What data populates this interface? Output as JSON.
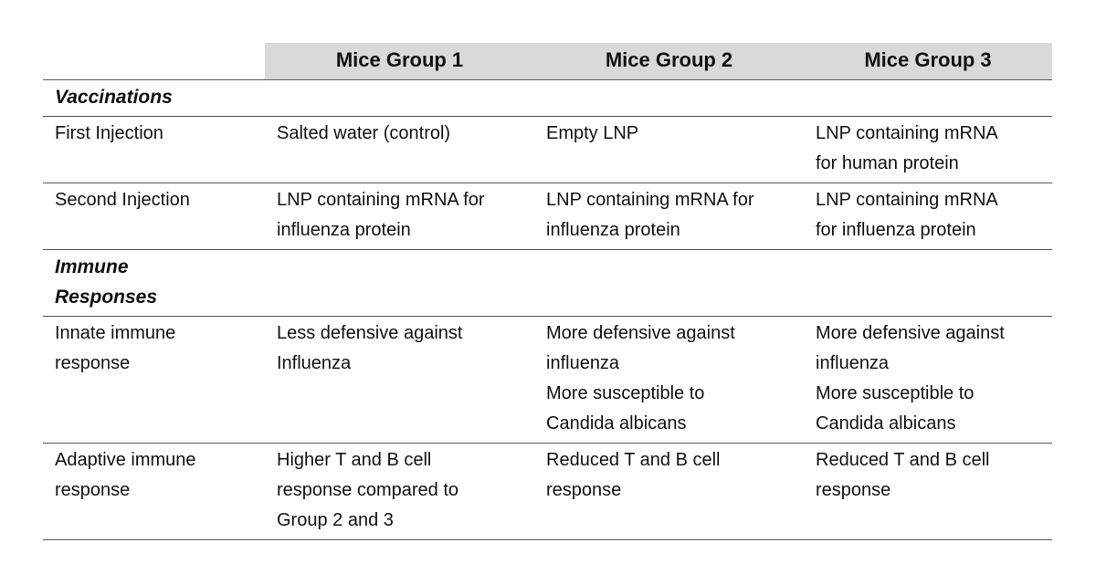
{
  "table": {
    "columns": [
      "Mice Group 1",
      "Mice Group 2",
      "Mice Group 3"
    ],
    "sections": [
      {
        "title": "Vaccinations",
        "rows": [
          {
            "label": "First Injection",
            "cells": [
              [
                "Salted water (control)"
              ],
              [
                "Empty LNP"
              ],
              [
                "LNP containing mRNA for human protein"
              ]
            ]
          },
          {
            "label": "Second Injection",
            "cells": [
              [
                "LNP containing mRNA for influenza protein"
              ],
              [
                "LNP containing mRNA for influenza protein"
              ],
              [
                "LNP containing mRNA for influenza protein"
              ]
            ]
          }
        ]
      },
      {
        "title": "Immune Responses",
        "rows": [
          {
            "label": "Innate immune response",
            "cells": [
              [
                "Less defensive against Influenza"
              ],
              [
                "More defensive against influenza",
                "More susceptible to Candida albicans"
              ],
              [
                "More defensive against influenza",
                "More susceptible to Candida albicans"
              ]
            ]
          },
          {
            "label": "Adaptive immune response",
            "cells": [
              [
                "Higher T and B cell response compared to Group 2 and 3"
              ],
              [
                "Reduced T and B cell response"
              ],
              [
                "Reduced T and B cell response"
              ]
            ]
          }
        ]
      }
    ]
  }
}
